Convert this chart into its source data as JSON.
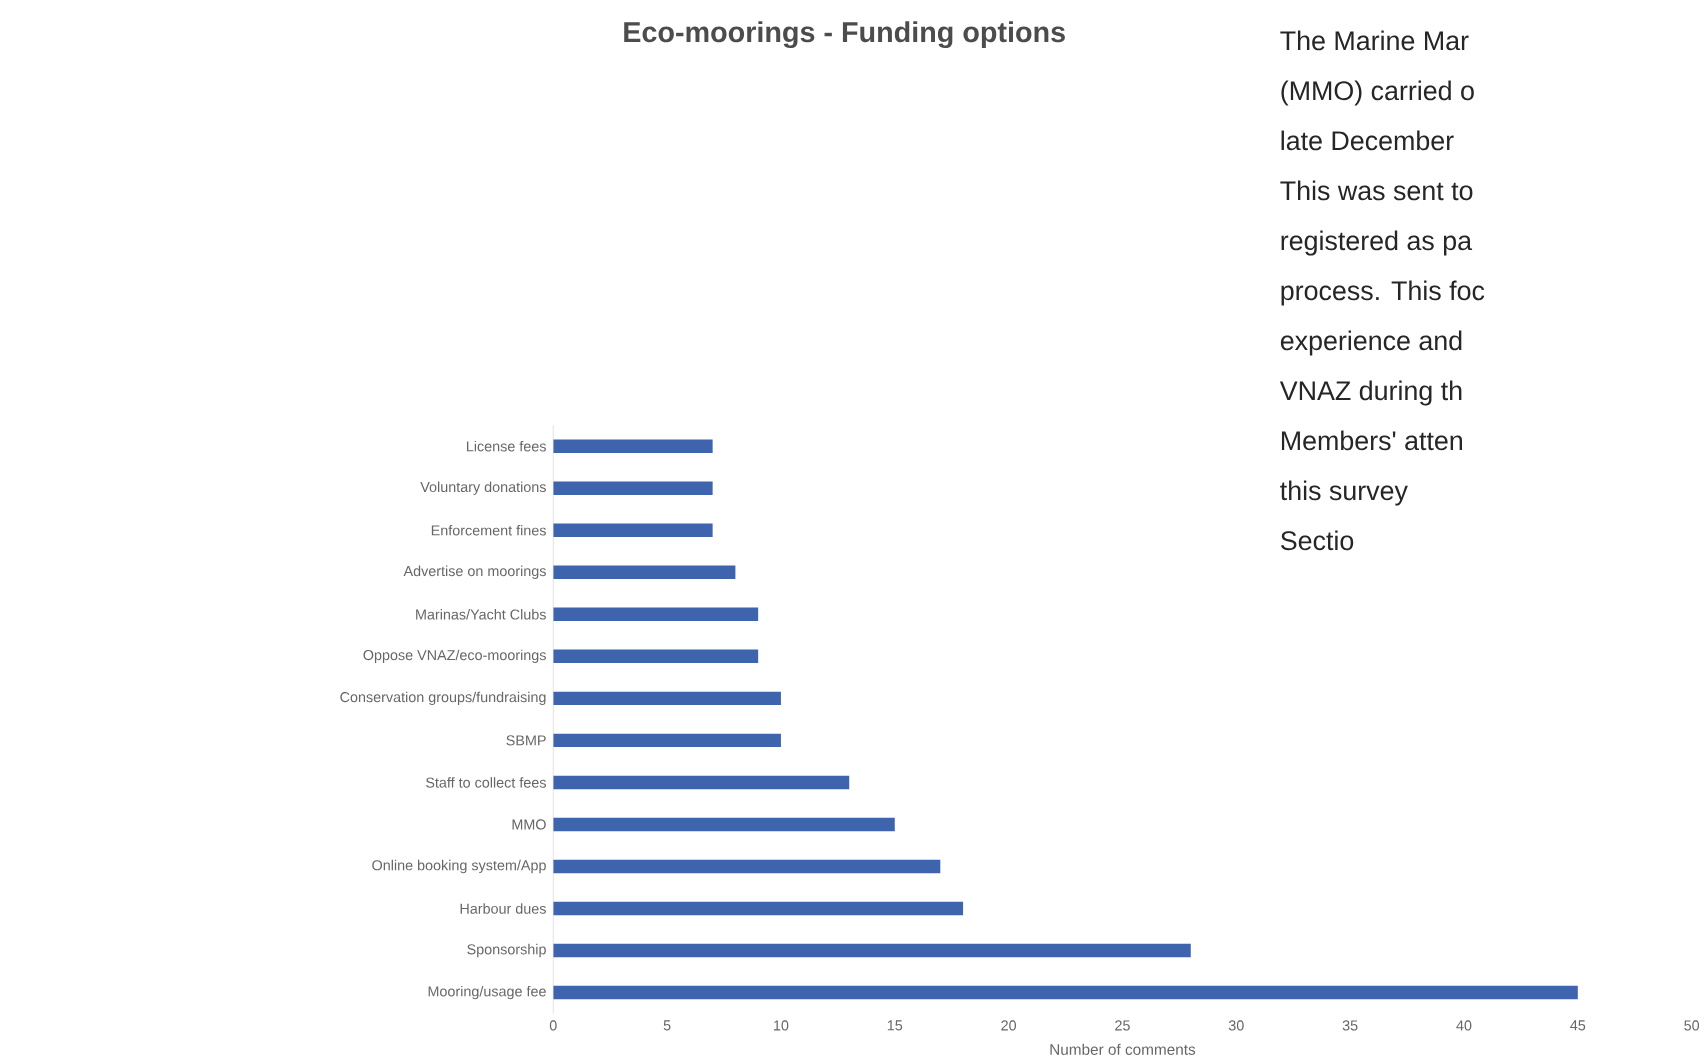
{
  "chart_data": {
    "type": "bar",
    "orientation": "horizontal",
    "title": "Eco-moorings - Funding options",
    "xlabel": "Number of comments",
    "categories": [
      "License fees",
      "Voluntary donations",
      "Enforcement fines",
      "Advertise on moorings",
      "Marinas/Yacht Clubs",
      "Oppose VNAZ/eco-moorings",
      "Conservation groups/fundraising",
      "SBMP",
      "Staff to collect fees",
      "MMO",
      "Online booking system/App",
      "Harbour dues",
      "Sponsorship",
      "Mooring/usage fee"
    ],
    "values": [
      7,
      7,
      7,
      8,
      9,
      9,
      10,
      10,
      13,
      15,
      17,
      18,
      28,
      45
    ],
    "color": "#3d64ad",
    "xlim": [
      0,
      50
    ],
    "xticks": [
      0,
      5,
      10,
      15,
      20,
      25,
      30,
      35,
      40,
      45,
      50
    ],
    "annotations": [
      "The Marine Mar",
      "(MMO) carried o",
      "late December",
      "This was sent to",
      "registered as pa",
      "process. This foc",
      "experience and",
      "VNAZ during th",
      "Members' atten",
      "this survey",
      "Sectio"
    ]
  }
}
